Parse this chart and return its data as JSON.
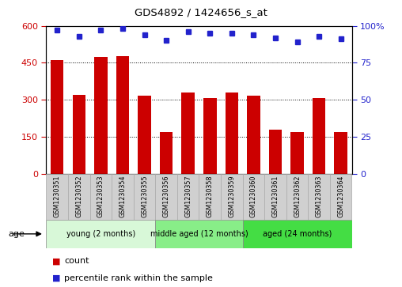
{
  "title": "GDS4892 / 1424656_s_at",
  "samples": [
    "GSM1230351",
    "GSM1230352",
    "GSM1230353",
    "GSM1230354",
    "GSM1230355",
    "GSM1230356",
    "GSM1230357",
    "GSM1230358",
    "GSM1230359",
    "GSM1230360",
    "GSM1230361",
    "GSM1230362",
    "GSM1230363",
    "GSM1230364"
  ],
  "counts": [
    462,
    320,
    475,
    478,
    315,
    168,
    328,
    308,
    330,
    318,
    178,
    168,
    308,
    170
  ],
  "percentiles": [
    97,
    93,
    97,
    98,
    94,
    90,
    96,
    95,
    95,
    94,
    92,
    89,
    93,
    91
  ],
  "bar_color": "#cc0000",
  "dot_color": "#2222cc",
  "ylim_left": [
    0,
    600
  ],
  "ylim_right": [
    0,
    100
  ],
  "yticks_left": [
    0,
    150,
    300,
    450,
    600
  ],
  "yticks_right": [
    0,
    25,
    50,
    75,
    100
  ],
  "groups": [
    {
      "label": "young (2 months)",
      "start": 0,
      "end": 5,
      "color": "#d8f8d8"
    },
    {
      "label": "middle aged (12 months)",
      "start": 5,
      "end": 9,
      "color": "#88ee88"
    },
    {
      "label": "aged (24 months)",
      "start": 9,
      "end": 14,
      "color": "#44dd44"
    }
  ],
  "age_label": "age",
  "legend_count": "count",
  "legend_percentile": "percentile rank within the sample",
  "tick_label_color_left": "#cc0000",
  "tick_label_color_right": "#2222cc",
  "title_color": "#000000",
  "tick_box_color": "#d0d0d0",
  "tick_box_edge_color": "#aaaaaa"
}
